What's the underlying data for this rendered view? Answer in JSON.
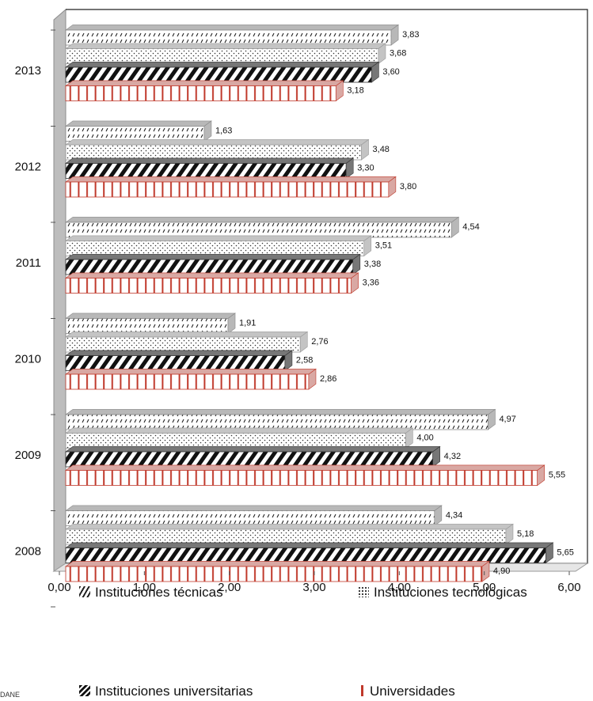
{
  "chart_data": {
    "type": "bar",
    "orientation": "horizontal",
    "categories": [
      "2013",
      "2012",
      "2011",
      "2010",
      "2009",
      "2008"
    ],
    "series": [
      {
        "name": "Instituciones  técnicas",
        "values": [
          3.83,
          1.63,
          4.54,
          1.91,
          4.97,
          4.34
        ]
      },
      {
        "name": "Instituciones tecnológicas",
        "values": [
          3.68,
          3.48,
          3.51,
          2.76,
          4.0,
          5.18
        ]
      },
      {
        "name": "Instituciones universitarias",
        "values": [
          3.6,
          3.3,
          3.38,
          2.58,
          4.32,
          5.65
        ]
      },
      {
        "name": "Universidades",
        "values": [
          3.18,
          3.8,
          3.36,
          2.86,
          5.55,
          4.9
        ]
      }
    ],
    "data_labels": [
      [
        "3,83",
        "1,63",
        "4,54",
        "1,91",
        "4,97",
        "4,34"
      ],
      [
        "3,68",
        "3,48",
        "3,51",
        "2,76",
        "4,00",
        "5,18"
      ],
      [
        "3,60",
        "3,30",
        "3,38",
        "2,58",
        "4,32",
        "5,65"
      ],
      [
        "3,18",
        "3,80",
        "3,36",
        "2,86",
        "5,55",
        "4,90"
      ]
    ],
    "x_ticks": [
      "0,00",
      "1,00",
      "2,00",
      "3,00",
      "4,00",
      "5,00",
      "6,00"
    ],
    "xlim": [
      0,
      6
    ],
    "legend_position": "bottom",
    "grid": false,
    "style": "3d",
    "colors": {
      "universidades": "#c0392b",
      "pattern": "#111111",
      "wall": "#bdbdbd"
    }
  },
  "legend": {
    "items": [
      "Instituciones  técnicas",
      "Instituciones tecnológicas",
      "Instituciones universitarias",
      "Universidades"
    ]
  },
  "source_fragment": "DANE"
}
